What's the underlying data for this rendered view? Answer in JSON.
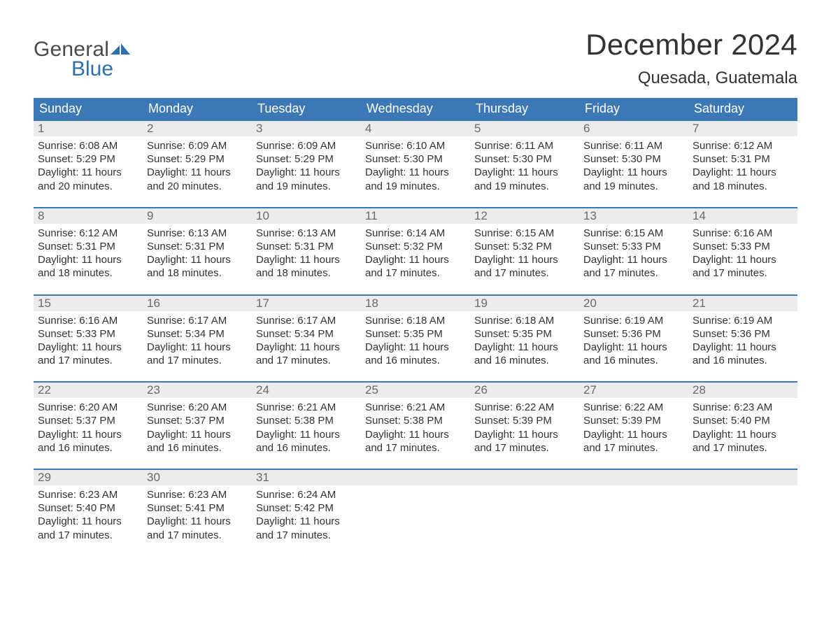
{
  "logo": {
    "text1": "General",
    "text2": "Blue",
    "color_general": "#4a4a4a",
    "color_blue": "#2f6fb0",
    "flag_color": "#2f6fb0"
  },
  "title": "December 2024",
  "location": "Quesada, Guatemala",
  "colors": {
    "header_bg": "#3b78b5",
    "header_text": "#ffffff",
    "daynum_bg": "#ececec",
    "daynum_text": "#6a6a6a",
    "body_text": "#333333",
    "row_border": "#3b78b5",
    "background": "#ffffff"
  },
  "typography": {
    "title_fontsize": 42,
    "location_fontsize": 24,
    "dow_fontsize": 18,
    "daynum_fontsize": 17,
    "cell_fontsize": 15
  },
  "days_of_week": [
    "Sunday",
    "Monday",
    "Tuesday",
    "Wednesday",
    "Thursday",
    "Friday",
    "Saturday"
  ],
  "weeks": [
    [
      {
        "n": "1",
        "sunrise": "Sunrise: 6:08 AM",
        "sunset": "Sunset: 5:29 PM",
        "d1": "Daylight: 11 hours",
        "d2": "and 20 minutes."
      },
      {
        "n": "2",
        "sunrise": "Sunrise: 6:09 AM",
        "sunset": "Sunset: 5:29 PM",
        "d1": "Daylight: 11 hours",
        "d2": "and 20 minutes."
      },
      {
        "n": "3",
        "sunrise": "Sunrise: 6:09 AM",
        "sunset": "Sunset: 5:29 PM",
        "d1": "Daylight: 11 hours",
        "d2": "and 19 minutes."
      },
      {
        "n": "4",
        "sunrise": "Sunrise: 6:10 AM",
        "sunset": "Sunset: 5:30 PM",
        "d1": "Daylight: 11 hours",
        "d2": "and 19 minutes."
      },
      {
        "n": "5",
        "sunrise": "Sunrise: 6:11 AM",
        "sunset": "Sunset: 5:30 PM",
        "d1": "Daylight: 11 hours",
        "d2": "and 19 minutes."
      },
      {
        "n": "6",
        "sunrise": "Sunrise: 6:11 AM",
        "sunset": "Sunset: 5:30 PM",
        "d1": "Daylight: 11 hours",
        "d2": "and 19 minutes."
      },
      {
        "n": "7",
        "sunrise": "Sunrise: 6:12 AM",
        "sunset": "Sunset: 5:31 PM",
        "d1": "Daylight: 11 hours",
        "d2": "and 18 minutes."
      }
    ],
    [
      {
        "n": "8",
        "sunrise": "Sunrise: 6:12 AM",
        "sunset": "Sunset: 5:31 PM",
        "d1": "Daylight: 11 hours",
        "d2": "and 18 minutes."
      },
      {
        "n": "9",
        "sunrise": "Sunrise: 6:13 AM",
        "sunset": "Sunset: 5:31 PM",
        "d1": "Daylight: 11 hours",
        "d2": "and 18 minutes."
      },
      {
        "n": "10",
        "sunrise": "Sunrise: 6:13 AM",
        "sunset": "Sunset: 5:31 PM",
        "d1": "Daylight: 11 hours",
        "d2": "and 18 minutes."
      },
      {
        "n": "11",
        "sunrise": "Sunrise: 6:14 AM",
        "sunset": "Sunset: 5:32 PM",
        "d1": "Daylight: 11 hours",
        "d2": "and 17 minutes."
      },
      {
        "n": "12",
        "sunrise": "Sunrise: 6:15 AM",
        "sunset": "Sunset: 5:32 PM",
        "d1": "Daylight: 11 hours",
        "d2": "and 17 minutes."
      },
      {
        "n": "13",
        "sunrise": "Sunrise: 6:15 AM",
        "sunset": "Sunset: 5:33 PM",
        "d1": "Daylight: 11 hours",
        "d2": "and 17 minutes."
      },
      {
        "n": "14",
        "sunrise": "Sunrise: 6:16 AM",
        "sunset": "Sunset: 5:33 PM",
        "d1": "Daylight: 11 hours",
        "d2": "and 17 minutes."
      }
    ],
    [
      {
        "n": "15",
        "sunrise": "Sunrise: 6:16 AM",
        "sunset": "Sunset: 5:33 PM",
        "d1": "Daylight: 11 hours",
        "d2": "and 17 minutes."
      },
      {
        "n": "16",
        "sunrise": "Sunrise: 6:17 AM",
        "sunset": "Sunset: 5:34 PM",
        "d1": "Daylight: 11 hours",
        "d2": "and 17 minutes."
      },
      {
        "n": "17",
        "sunrise": "Sunrise: 6:17 AM",
        "sunset": "Sunset: 5:34 PM",
        "d1": "Daylight: 11 hours",
        "d2": "and 17 minutes."
      },
      {
        "n": "18",
        "sunrise": "Sunrise: 6:18 AM",
        "sunset": "Sunset: 5:35 PM",
        "d1": "Daylight: 11 hours",
        "d2": "and 16 minutes."
      },
      {
        "n": "19",
        "sunrise": "Sunrise: 6:18 AM",
        "sunset": "Sunset: 5:35 PM",
        "d1": "Daylight: 11 hours",
        "d2": "and 16 minutes."
      },
      {
        "n": "20",
        "sunrise": "Sunrise: 6:19 AM",
        "sunset": "Sunset: 5:36 PM",
        "d1": "Daylight: 11 hours",
        "d2": "and 16 minutes."
      },
      {
        "n": "21",
        "sunrise": "Sunrise: 6:19 AM",
        "sunset": "Sunset: 5:36 PM",
        "d1": "Daylight: 11 hours",
        "d2": "and 16 minutes."
      }
    ],
    [
      {
        "n": "22",
        "sunrise": "Sunrise: 6:20 AM",
        "sunset": "Sunset: 5:37 PM",
        "d1": "Daylight: 11 hours",
        "d2": "and 16 minutes."
      },
      {
        "n": "23",
        "sunrise": "Sunrise: 6:20 AM",
        "sunset": "Sunset: 5:37 PM",
        "d1": "Daylight: 11 hours",
        "d2": "and 16 minutes."
      },
      {
        "n": "24",
        "sunrise": "Sunrise: 6:21 AM",
        "sunset": "Sunset: 5:38 PM",
        "d1": "Daylight: 11 hours",
        "d2": "and 16 minutes."
      },
      {
        "n": "25",
        "sunrise": "Sunrise: 6:21 AM",
        "sunset": "Sunset: 5:38 PM",
        "d1": "Daylight: 11 hours",
        "d2": "and 17 minutes."
      },
      {
        "n": "26",
        "sunrise": "Sunrise: 6:22 AM",
        "sunset": "Sunset: 5:39 PM",
        "d1": "Daylight: 11 hours",
        "d2": "and 17 minutes."
      },
      {
        "n": "27",
        "sunrise": "Sunrise: 6:22 AM",
        "sunset": "Sunset: 5:39 PM",
        "d1": "Daylight: 11 hours",
        "d2": "and 17 minutes."
      },
      {
        "n": "28",
        "sunrise": "Sunrise: 6:23 AM",
        "sunset": "Sunset: 5:40 PM",
        "d1": "Daylight: 11 hours",
        "d2": "and 17 minutes."
      }
    ],
    [
      {
        "n": "29",
        "sunrise": "Sunrise: 6:23 AM",
        "sunset": "Sunset: 5:40 PM",
        "d1": "Daylight: 11 hours",
        "d2": "and 17 minutes."
      },
      {
        "n": "30",
        "sunrise": "Sunrise: 6:23 AM",
        "sunset": "Sunset: 5:41 PM",
        "d1": "Daylight: 11 hours",
        "d2": "and 17 minutes."
      },
      {
        "n": "31",
        "sunrise": "Sunrise: 6:24 AM",
        "sunset": "Sunset: 5:42 PM",
        "d1": "Daylight: 11 hours",
        "d2": "and 17 minutes."
      },
      null,
      null,
      null,
      null
    ]
  ]
}
